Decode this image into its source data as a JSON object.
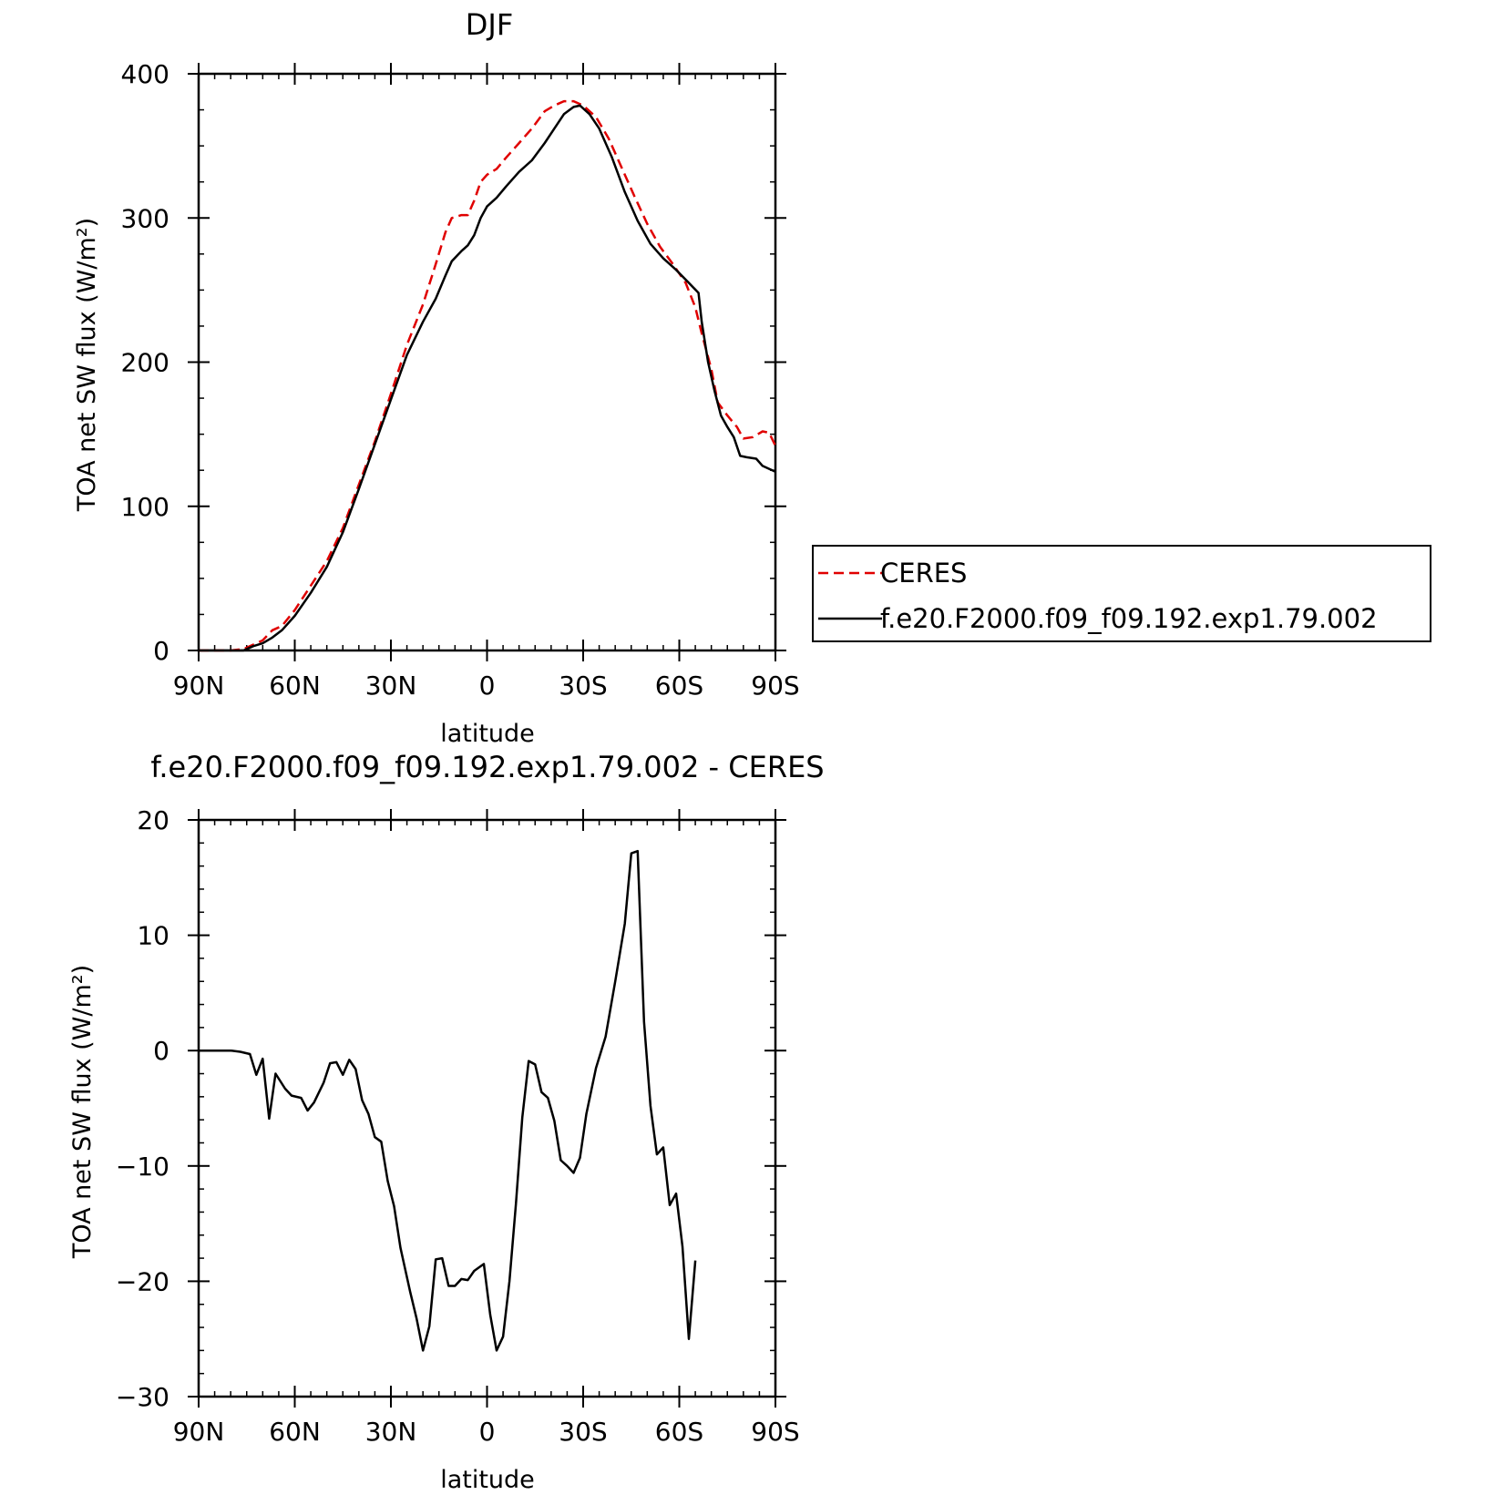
{
  "chart_data": [
    {
      "type": "line",
      "title": "DJF",
      "xlabel": "latitude",
      "ylabel": "TOA net SW flux (W/m²)",
      "xlim": [
        90,
        -90
      ],
      "ylim": [
        0,
        400
      ],
      "xticks": [
        {
          "value": 90,
          "label": "90N"
        },
        {
          "value": 60,
          "label": "60N"
        },
        {
          "value": 30,
          "label": "30N"
        },
        {
          "value": 0,
          "label": "0"
        },
        {
          "value": -30,
          "label": "30S"
        },
        {
          "value": -60,
          "label": "60S"
        },
        {
          "value": -90,
          "label": "90S"
        }
      ],
      "yticks": [
        {
          "value": 0,
          "label": "0"
        },
        {
          "value": 100,
          "label": "100"
        },
        {
          "value": 200,
          "label": "200"
        },
        {
          "value": 300,
          "label": "300"
        },
        {
          "value": 400,
          "label": "400"
        }
      ],
      "legend_position": "right",
      "series": [
        {
          "name": "CERES",
          "color": "#e00000",
          "dash": "dashed",
          "points": [
            [
              90,
              0
            ],
            [
              85,
              0
            ],
            [
              80,
              0
            ],
            [
              76,
              1
            ],
            [
              73,
              4
            ],
            [
              70,
              7
            ],
            [
              67,
              14
            ],
            [
              64,
              17
            ],
            [
              60,
              28
            ],
            [
              55,
              45
            ],
            [
              50,
              62
            ],
            [
              45,
              85
            ],
            [
              40,
              115
            ],
            [
              35,
              145
            ],
            [
              30,
              178
            ],
            [
              25,
              212
            ],
            [
              20,
              240
            ],
            [
              16,
              268
            ],
            [
              13,
              290
            ],
            [
              11,
              300
            ],
            [
              8,
              302
            ],
            [
              6,
              302
            ],
            [
              4,
              312
            ],
            [
              2,
              325
            ],
            [
              0,
              330
            ],
            [
              -3,
              334
            ],
            [
              -6,
              342
            ],
            [
              -10,
              352
            ],
            [
              -14,
              362
            ],
            [
              -18,
              374
            ],
            [
              -21,
              378
            ],
            [
              -24,
              381
            ],
            [
              -27,
              381
            ],
            [
              -30,
              378
            ],
            [
              -34,
              370
            ],
            [
              -38,
              355
            ],
            [
              -42,
              335
            ],
            [
              -46,
              315
            ],
            [
              -50,
              296
            ],
            [
              -54,
              280
            ],
            [
              -58,
              268
            ],
            [
              -62,
              255
            ],
            [
              -65,
              238
            ],
            [
              -67,
              220
            ],
            [
              -70,
              195
            ],
            [
              -72,
              172
            ],
            [
              -75,
              163
            ],
            [
              -78,
              155
            ],
            [
              -80,
              147
            ],
            [
              -83,
              148
            ],
            [
              -86,
              152
            ],
            [
              -88,
              151
            ],
            [
              -90,
              142
            ]
          ]
        },
        {
          "name": "f.e20.F2000.f09_f09.192.exp1.79.002",
          "color": "#000000",
          "dash": "solid",
          "points": [
            [
              90,
              0
            ],
            [
              85,
              0
            ],
            [
              80,
              0
            ],
            [
              76,
              0
            ],
            [
              73,
              3
            ],
            [
              70,
              5
            ],
            [
              67,
              9
            ],
            [
              64,
              14
            ],
            [
              60,
              24
            ],
            [
              55,
              40
            ],
            [
              50,
              58
            ],
            [
              45,
              82
            ],
            [
              40,
              112
            ],
            [
              35,
              143
            ],
            [
              30,
              174
            ],
            [
              25,
              205
            ],
            [
              20,
              228
            ],
            [
              16,
              244
            ],
            [
              13,
              260
            ],
            [
              11,
              270
            ],
            [
              8,
              277
            ],
            [
              6,
              281
            ],
            [
              4,
              288
            ],
            [
              2,
              300
            ],
            [
              0,
              308
            ],
            [
              -3,
              314
            ],
            [
              -6,
              322
            ],
            [
              -10,
              332
            ],
            [
              -14,
              340
            ],
            [
              -18,
              352
            ],
            [
              -21,
              362
            ],
            [
              -24,
              372
            ],
            [
              -27,
              377
            ],
            [
              -29,
              378
            ],
            [
              -32,
              372
            ],
            [
              -35,
              362
            ],
            [
              -39,
              342
            ],
            [
              -43,
              318
            ],
            [
              -47,
              298
            ],
            [
              -51,
              282
            ],
            [
              -55,
              272
            ],
            [
              -59,
              264
            ],
            [
              -63,
              255
            ],
            [
              -66,
              248
            ],
            [
              -67,
              228
            ],
            [
              -69,
              200
            ],
            [
              -71,
              180
            ],
            [
              -73,
              163
            ],
            [
              -75,
              155
            ],
            [
              -77,
              148
            ],
            [
              -79,
              135
            ],
            [
              -81,
              134
            ],
            [
              -84,
              133
            ],
            [
              -86,
              128
            ],
            [
              -88,
              126
            ],
            [
              -90,
              124
            ]
          ]
        }
      ]
    },
    {
      "type": "line",
      "title": "f.e20.F2000.f09_f09.192.exp1.79.002 - CERES",
      "xlabel": "latitude",
      "ylabel": "TOA net SW flux (W/m²)",
      "xlim": [
        90,
        -90
      ],
      "ylim": [
        -30,
        20
      ],
      "xticks": [
        {
          "value": 90,
          "label": "90N"
        },
        {
          "value": 60,
          "label": "60N"
        },
        {
          "value": 30,
          "label": "30N"
        },
        {
          "value": 0,
          "label": "0"
        },
        {
          "value": -30,
          "label": "30S"
        },
        {
          "value": -60,
          "label": "60S"
        },
        {
          "value": -90,
          "label": "90S"
        }
      ],
      "yticks": [
        {
          "value": -30,
          "label": "−30"
        },
        {
          "value": -20,
          "label": "−20"
        },
        {
          "value": -10,
          "label": "−10"
        },
        {
          "value": 0,
          "label": "0"
        },
        {
          "value": 10,
          "label": "10"
        },
        {
          "value": 20,
          "label": "20"
        }
      ],
      "series": [
        {
          "name": "",
          "color": "#000000",
          "dash": "solid",
          "points": [
            [
              90,
              0
            ],
            [
              85,
              0
            ],
            [
              80,
              0
            ],
            [
              77,
              -0.1
            ],
            [
              74,
              -0.3
            ],
            [
              72,
              -2.1
            ],
            [
              70,
              -0.7
            ],
            [
              68,
              -5.9
            ],
            [
              66,
              -2.0
            ],
            [
              63,
              -3.3
            ],
            [
              61,
              -3.9
            ],
            [
              58,
              -4.1
            ],
            [
              56,
              -5.2
            ],
            [
              54,
              -4.5
            ],
            [
              51,
              -2.8
            ],
            [
              49,
              -1.1
            ],
            [
              47,
              -1.0
            ],
            [
              45,
              -2.1
            ],
            [
              43,
              -0.8
            ],
            [
              41,
              -1.6
            ],
            [
              39,
              -4.3
            ],
            [
              37,
              -5.5
            ],
            [
              35,
              -7.5
            ],
            [
              33,
              -7.9
            ],
            [
              31,
              -11.3
            ],
            [
              29,
              -13.5
            ],
            [
              27,
              -17.1
            ],
            [
              24,
              -20.9
            ],
            [
              22,
              -23.2
            ],
            [
              20,
              -26.0
            ],
            [
              18,
              -23.9
            ],
            [
              16,
              -18.1
            ],
            [
              14,
              -18.0
            ],
            [
              12,
              -20.4
            ],
            [
              10,
              -20.4
            ],
            [
              8,
              -19.8
            ],
            [
              6,
              -19.9
            ],
            [
              4,
              -19.1
            ],
            [
              1,
              -18.5
            ],
            [
              -1,
              -22.9
            ],
            [
              -3,
              -26.0
            ],
            [
              -5,
              -24.8
            ],
            [
              -7,
              -20.0
            ],
            [
              -9,
              -13.3
            ],
            [
              -11,
              -5.8
            ],
            [
              -13,
              -0.9
            ],
            [
              -15,
              -1.2
            ],
            [
              -17,
              -3.6
            ],
            [
              -19,
              -4.1
            ],
            [
              -21,
              -6.1
            ],
            [
              -23,
              -9.5
            ],
            [
              -25,
              -10.0
            ],
            [
              -27,
              -10.6
            ],
            [
              -29,
              -9.3
            ],
            [
              -31,
              -5.5
            ],
            [
              -34,
              -1.5
            ],
            [
              -37,
              1.2
            ],
            [
              -40,
              6.0
            ],
            [
              -43,
              11.0
            ],
            [
              -45,
              17.1
            ],
            [
              -47,
              17.3
            ],
            [
              -49,
              2.5
            ],
            [
              -51,
              -4.8
            ],
            [
              -53,
              -9.0
            ],
            [
              -55,
              -8.4
            ],
            [
              -57,
              -13.4
            ],
            [
              -59,
              -12.4
            ],
            [
              -61,
              -17.0
            ],
            [
              -63,
              -25.0
            ],
            [
              -65,
              -18.2
            ]
          ]
        }
      ]
    }
  ]
}
